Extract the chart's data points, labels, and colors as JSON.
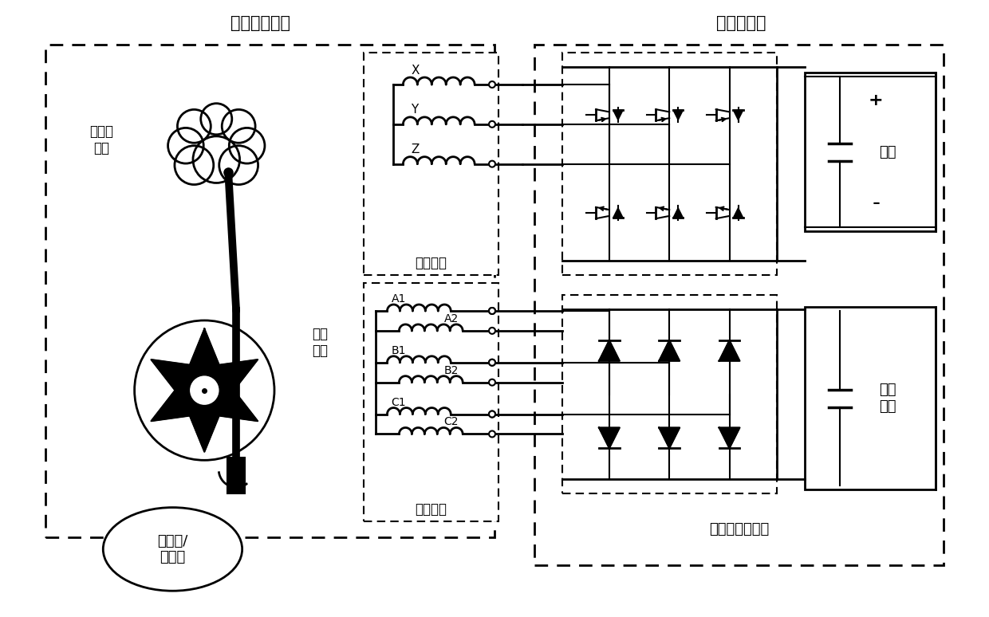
{
  "title_motor": "本发明的电机",
  "title_converter": "功率变换器",
  "label_excitation_rotor": "电励磁\n转子",
  "label_pm_rotor": "永磁\n转子",
  "label_field_winding": "励磁绕组",
  "label_armature_winding": "电枢绕组",
  "label_bridge_rectifier": "桥式不控整流器",
  "label_prime_mover": "原动机/\n机械能",
  "label_power_source": "电源",
  "label_electrical_load": "电气\n负载",
  "label_X": "X",
  "label_Y": "Y",
  "label_Z": "Z",
  "label_A1": "A1",
  "label_A2": "A2",
  "label_B1": "B1",
  "label_B2": "B2",
  "label_C1": "C1",
  "label_C2": "C2",
  "label_plus": "+",
  "label_minus": "-",
  "bg_color": "#ffffff",
  "line_color": "#000000"
}
